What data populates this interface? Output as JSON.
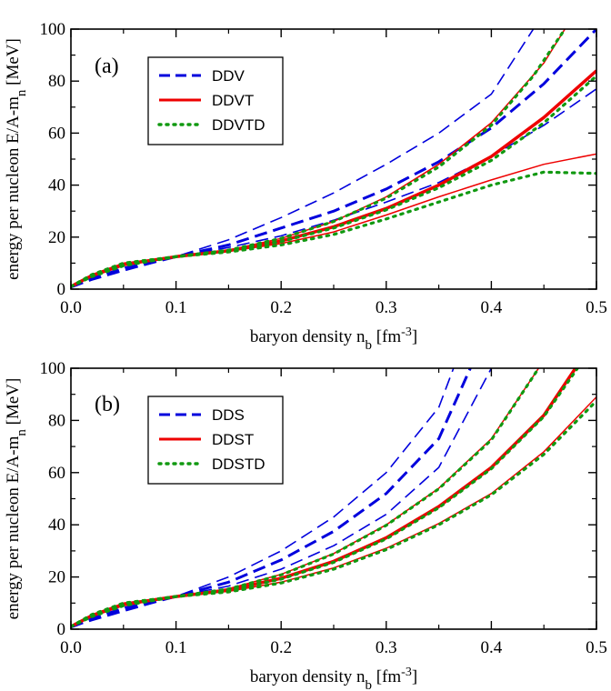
{
  "chart_data": [
    {
      "type": "line",
      "panel_label": "(a)",
      "xlabel": "baryon density  n_b  [fm^-3]",
      "ylabel": "energy per nucleon  E/A-m_n  [MeV]",
      "xlim": [
        0.0,
        0.5
      ],
      "ylim": [
        0,
        100
      ],
      "x_ticks": [
        "0.0",
        "0.1",
        "0.2",
        "0.3",
        "0.4",
        "0.5"
      ],
      "y_ticks": [
        "0",
        "20",
        "40",
        "60",
        "80",
        "100"
      ],
      "grid": false,
      "legend_position": "top-left",
      "legend": [
        "DDV",
        "DDVT",
        "DDVTD"
      ],
      "series": [
        {
          "name": "DDV",
          "color": "#0000dd",
          "style": "dashed",
          "width": 1.6,
          "x": [
            0.0,
            0.02,
            0.05,
            0.1,
            0.15,
            0.2,
            0.25,
            0.3,
            0.35,
            0.4,
            0.44
          ],
          "y": [
            0.8,
            3.5,
            7,
            12.5,
            19,
            27.5,
            37,
            48,
            60,
            75,
            100
          ]
        },
        {
          "name": "DDV",
          "color": "#0000dd",
          "style": "dashed",
          "width": 3.0,
          "x": [
            0.0,
            0.02,
            0.05,
            0.1,
            0.15,
            0.2,
            0.25,
            0.3,
            0.35,
            0.4,
            0.45,
            0.5
          ],
          "y": [
            0.8,
            3.8,
            7.5,
            12.5,
            17,
            23.5,
            30,
            38.5,
            49,
            62,
            79,
            100
          ]
        },
        {
          "name": "DDV",
          "color": "#0000dd",
          "style": "dashed",
          "width": 1.6,
          "x": [
            0.0,
            0.02,
            0.05,
            0.1,
            0.15,
            0.2,
            0.25,
            0.3,
            0.35,
            0.4,
            0.45,
            0.5
          ],
          "y": [
            0.8,
            4.3,
            8.3,
            12.5,
            16,
            20.5,
            26.5,
            33.5,
            41,
            51,
            63,
            77
          ]
        },
        {
          "name": "DDVT",
          "color": "#ee0000",
          "style": "solid",
          "width": 1.5,
          "x": [
            0.0,
            0.02,
            0.05,
            0.1,
            0.15,
            0.2,
            0.25,
            0.3,
            0.35,
            0.4,
            0.45,
            0.47
          ],
          "y": [
            1,
            4.8,
            9,
            12.5,
            15,
            19.5,
            26,
            35.5,
            48,
            64,
            87,
            100
          ]
        },
        {
          "name": "DDVT",
          "color": "#ee0000",
          "style": "solid",
          "width": 3.5,
          "x": [
            0.0,
            0.02,
            0.05,
            0.1,
            0.15,
            0.2,
            0.25,
            0.3,
            0.35,
            0.4,
            0.45,
            0.5
          ],
          "y": [
            1,
            5.2,
            9.5,
            12.5,
            14.8,
            18.5,
            24,
            31,
            40,
            51,
            66,
            84
          ]
        },
        {
          "name": "DDVT",
          "color": "#ee0000",
          "style": "solid",
          "width": 1.5,
          "x": [
            0.0,
            0.02,
            0.05,
            0.1,
            0.15,
            0.2,
            0.25,
            0.3,
            0.35,
            0.4,
            0.45,
            0.5
          ],
          "y": [
            1,
            5.6,
            10,
            12.5,
            14.5,
            17.5,
            22,
            28.5,
            35.5,
            42,
            48,
            52
          ]
        },
        {
          "name": "DDVTD",
          "color": "#119911",
          "style": "dotted",
          "width": 3.2,
          "x": [
            0.0,
            0.02,
            0.05,
            0.1,
            0.15,
            0.2,
            0.25,
            0.3,
            0.35,
            0.4,
            0.44,
            0.47
          ],
          "y": [
            1,
            4.8,
            9,
            12.5,
            15,
            19.5,
            26,
            35,
            47,
            63,
            82,
            100
          ]
        },
        {
          "name": "DDVTD",
          "color": "#119911",
          "style": "dotted",
          "width": 3.2,
          "x": [
            0.0,
            0.02,
            0.05,
            0.1,
            0.15,
            0.2,
            0.25,
            0.3,
            0.35,
            0.4,
            0.45,
            0.5
          ],
          "y": [
            1,
            5.2,
            9.5,
            12.5,
            14.8,
            18.3,
            23.5,
            30.5,
            39,
            49.5,
            64,
            82
          ]
        },
        {
          "name": "DDVTD",
          "color": "#119911",
          "style": "dotted",
          "width": 3.2,
          "x": [
            0.0,
            0.02,
            0.05,
            0.1,
            0.15,
            0.2,
            0.25,
            0.3,
            0.35,
            0.4,
            0.45,
            0.5
          ],
          "y": [
            1,
            5.6,
            10,
            12.5,
            14.3,
            17,
            21,
            27,
            33.5,
            40,
            45,
            44.5
          ]
        }
      ]
    },
    {
      "type": "line",
      "panel_label": "(b)",
      "xlabel": "baryon density  n_b  [fm^-3]",
      "ylabel": "energy per nucleon  E/A-m_n  [MeV]",
      "xlim": [
        0.0,
        0.5
      ],
      "ylim": [
        0,
        100
      ],
      "x_ticks": [
        "0.0",
        "0.1",
        "0.2",
        "0.3",
        "0.4",
        "0.5"
      ],
      "y_ticks": [
        "0",
        "20",
        "40",
        "60",
        "80",
        "100"
      ],
      "grid": false,
      "legend_position": "top-left",
      "legend": [
        "DDS",
        "DDST",
        "DDSTD"
      ],
      "series": [
        {
          "name": "DDS",
          "color": "#0000dd",
          "style": "dashed",
          "width": 1.6,
          "x": [
            0.0,
            0.02,
            0.05,
            0.1,
            0.15,
            0.2,
            0.25,
            0.3,
            0.35,
            0.364
          ],
          "y": [
            0.8,
            3.3,
            6.8,
            12.5,
            20,
            30,
            43,
            60,
            85,
            100
          ]
        },
        {
          "name": "DDS",
          "color": "#0000dd",
          "style": "dashed",
          "width": 3.0,
          "x": [
            0.0,
            0.02,
            0.05,
            0.1,
            0.15,
            0.2,
            0.25,
            0.3,
            0.35,
            0.38
          ],
          "y": [
            0.8,
            3.8,
            7.5,
            12.5,
            18,
            26.5,
            37.5,
            52,
            73,
            100
          ]
        },
        {
          "name": "DDS",
          "color": "#0000dd",
          "style": "dashed",
          "width": 1.6,
          "x": [
            0.0,
            0.02,
            0.05,
            0.1,
            0.15,
            0.2,
            0.25,
            0.3,
            0.35,
            0.4
          ],
          "y": [
            0.8,
            4.3,
            8.3,
            12.5,
            16.5,
            23,
            32,
            44,
            62,
            100
          ]
        },
        {
          "name": "DDST",
          "color": "#ee0000",
          "style": "solid",
          "width": 1.5,
          "x": [
            0.0,
            0.02,
            0.05,
            0.1,
            0.15,
            0.2,
            0.25,
            0.3,
            0.35,
            0.4,
            0.445
          ],
          "y": [
            1,
            4.8,
            9,
            12.5,
            15.5,
            21,
            29,
            40,
            54,
            73,
            100
          ]
        },
        {
          "name": "DDST",
          "color": "#ee0000",
          "style": "solid",
          "width": 3.5,
          "x": [
            0.0,
            0.02,
            0.05,
            0.1,
            0.15,
            0.2,
            0.25,
            0.3,
            0.35,
            0.4,
            0.45,
            0.48
          ],
          "y": [
            1,
            5.2,
            9.5,
            12.5,
            15,
            19.5,
            26,
            35,
            47,
            62,
            82,
            100
          ]
        },
        {
          "name": "DDST",
          "color": "#ee0000",
          "style": "solid",
          "width": 1.5,
          "x": [
            0.0,
            0.02,
            0.05,
            0.1,
            0.15,
            0.2,
            0.25,
            0.3,
            0.35,
            0.4,
            0.45,
            0.5
          ],
          "y": [
            1,
            5.6,
            10,
            12.5,
            14.5,
            18,
            23.5,
            31,
            40.5,
            52,
            68,
            89
          ]
        },
        {
          "name": "DDSTD",
          "color": "#119911",
          "style": "dotted",
          "width": 3.2,
          "x": [
            0.0,
            0.02,
            0.05,
            0.1,
            0.15,
            0.2,
            0.25,
            0.3,
            0.35,
            0.4,
            0.445
          ],
          "y": [
            1,
            4.8,
            9,
            12.5,
            15.4,
            20.8,
            28.8,
            39.8,
            53.8,
            72.5,
            100
          ]
        },
        {
          "name": "DDSTD",
          "color": "#119911",
          "style": "dotted",
          "width": 3.2,
          "x": [
            0.0,
            0.02,
            0.05,
            0.1,
            0.15,
            0.2,
            0.25,
            0.3,
            0.35,
            0.4,
            0.45,
            0.482
          ],
          "y": [
            1,
            5.2,
            9.5,
            12.5,
            14.8,
            19.2,
            25.6,
            34.6,
            46.5,
            61.5,
            81.5,
            100
          ]
        },
        {
          "name": "DDSTD",
          "color": "#119911",
          "style": "dotted",
          "width": 3.2,
          "x": [
            0.0,
            0.02,
            0.05,
            0.1,
            0.15,
            0.2,
            0.25,
            0.3,
            0.35,
            0.4,
            0.45,
            0.5
          ],
          "y": [
            1,
            5.6,
            10,
            12.5,
            14.3,
            17.7,
            23,
            30.5,
            40,
            51.5,
            67,
            87.5
          ]
        }
      ]
    }
  ]
}
